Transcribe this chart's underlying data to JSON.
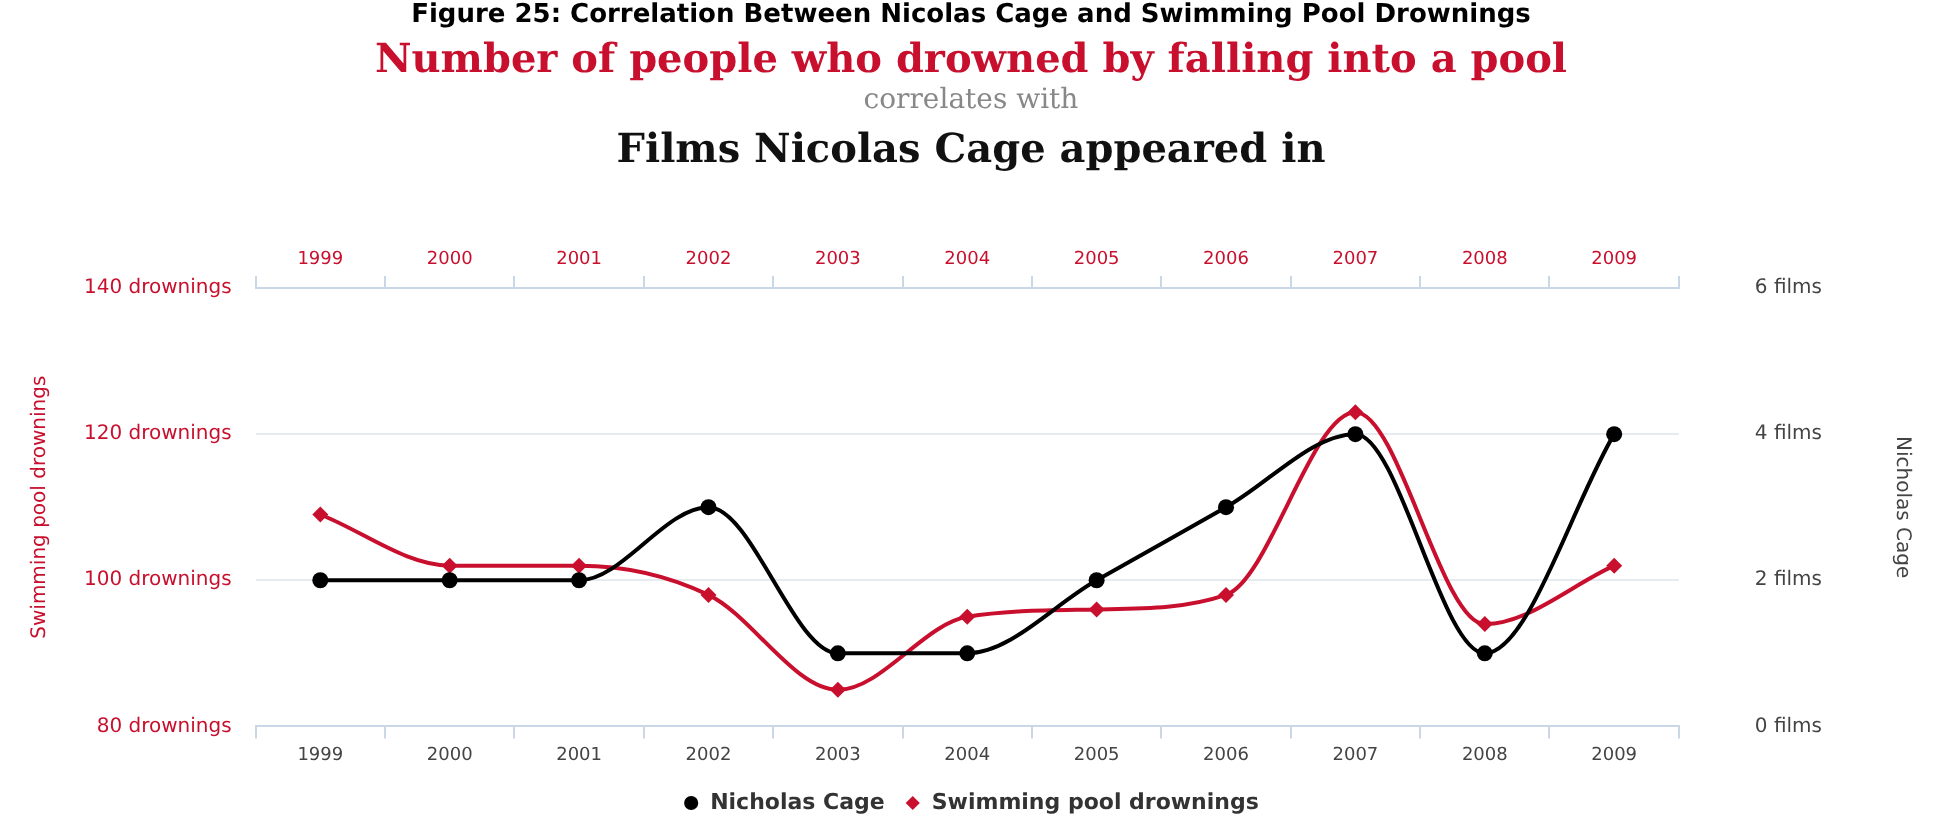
{
  "chart_data": {
    "type": "line",
    "title": "Number of people who drowned by falling into a pool",
    "subtitle": "Films Nicolas Cage appeared in",
    "annotations": [
      "Figure 25: Correlation Between Nicolas Cage and Swimming Pool Drownings",
      "correlates with"
    ],
    "categories": [
      "1999",
      "2000",
      "2001",
      "2002",
      "2003",
      "2004",
      "2005",
      "2006",
      "2007",
      "2008",
      "2009"
    ],
    "series": [
      {
        "name": "Nicholas Cage",
        "color": "#000000",
        "axis": "y2",
        "marker": "circle",
        "values": [
          2,
          2,
          2,
          3,
          1,
          1,
          2,
          3,
          4,
          1,
          4
        ]
      },
      {
        "name": "Swimming pool drownings",
        "color": "#c8102e",
        "axis": "y",
        "marker": "diamond",
        "values": [
          109,
          102,
          102,
          98,
          85,
          95,
          96,
          98,
          123,
          94,
          102
        ]
      }
    ],
    "ylabel": "Swimming pool drownings",
    "y2label": "Nicholas Cage",
    "ylim": [
      80,
      140
    ],
    "yticks": [
      {
        "value": 80,
        "label": "80 drownings"
      },
      {
        "value": 100,
        "label": "100 drownings"
      },
      {
        "value": 120,
        "label": "120 drownings"
      },
      {
        "value": 140,
        "label": "140 drownings"
      }
    ],
    "y2lim": [
      0,
      6
    ],
    "y2ticks": [
      {
        "value": 0,
        "label": "0 films"
      },
      {
        "value": 2,
        "label": "2 films"
      },
      {
        "value": 4,
        "label": "4 films"
      },
      {
        "value": 6,
        "label": "6 films"
      }
    ],
    "grid": "y",
    "legend": "bottom"
  }
}
